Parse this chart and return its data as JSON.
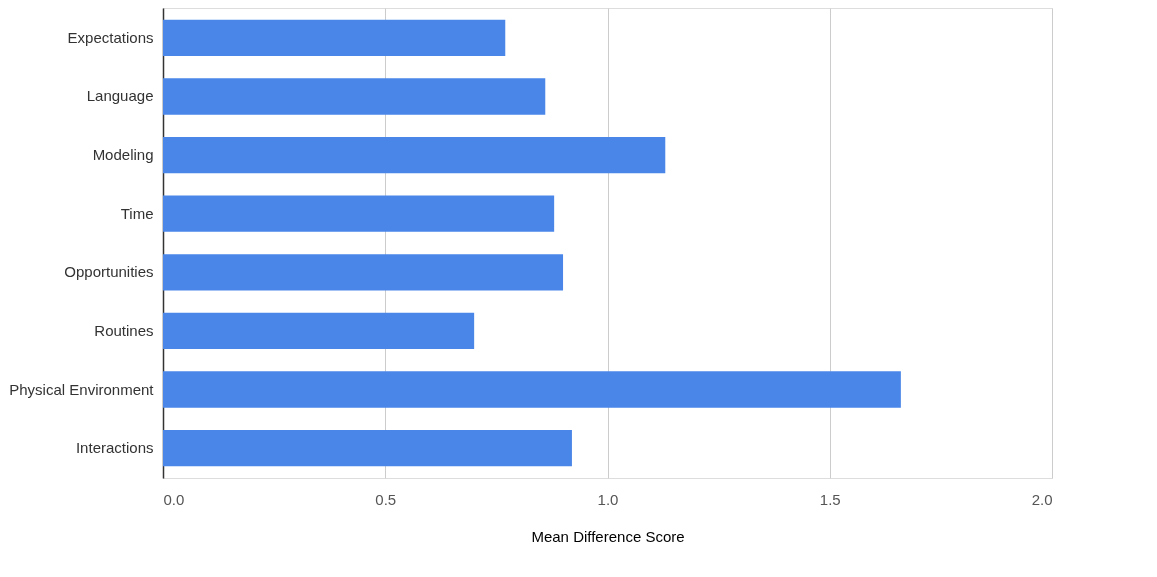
{
  "chart_data": {
    "type": "bar",
    "orientation": "horizontal",
    "xlabel": "Mean Difference Score",
    "categories": [
      "Expectations",
      "Language",
      "Modeling",
      "Time",
      "Opportunities",
      "Routines",
      "Physical Environment",
      "Interactions"
    ],
    "values": [
      0.77,
      0.86,
      1.13,
      0.88,
      0.9,
      0.7,
      1.66,
      0.92
    ],
    "color": "#4a86e8",
    "xlim": [
      0,
      2
    ],
    "xticks": [
      {
        "value": 0,
        "label": "0.0"
      },
      {
        "value": 0.5,
        "label": "0.5"
      },
      {
        "value": 1,
        "label": "1.0"
      },
      {
        "value": 1.5,
        "label": "1.5"
      },
      {
        "value": 2,
        "label": "2.0"
      }
    ],
    "grid": "x"
  }
}
